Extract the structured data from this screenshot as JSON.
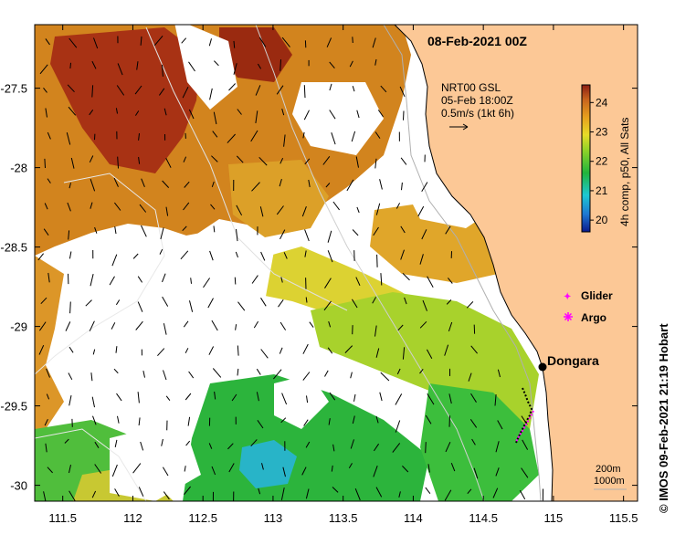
{
  "map": {
    "date_label": "08-Feb-2021 00Z",
    "current_info": {
      "line1": "NRT00 GSL",
      "line2": "05-Feb 18:00Z",
      "line3": "0.5m/s (1kt 6h)"
    },
    "colorbar": {
      "label": "4h comp, p50, All Sats",
      "ticks": [
        "24",
        "23",
        "22",
        "21",
        "20"
      ],
      "range": [
        19.6,
        24.6
      ],
      "colors": [
        "#0a1a8c",
        "#1e78d2",
        "#1ec8d2",
        "#22b43c",
        "#8cd228",
        "#e6dc28",
        "#e6a01e",
        "#c8641e",
        "#8c1e14"
      ]
    },
    "legend": {
      "glider": "Glider",
      "argo": "Argo"
    },
    "place": {
      "name": "Dongara"
    },
    "scale": {
      "depth1": "200m",
      "depth2": "1000m"
    },
    "credit": "© IMOS 09-Feb-2021 21:19 Hobart",
    "x_ticks": [
      "111.5",
      "112",
      "112.5",
      "113",
      "113.5",
      "114",
      "114.5",
      "115",
      "115.5"
    ],
    "y_ticks": [
      "-27.5",
      "-28",
      "-28.5",
      "-29",
      "-29.5",
      "-30"
    ],
    "extent": {
      "lon": [
        111.3,
        115.6
      ],
      "lat": [
        -30.1,
        -27.1
      ]
    },
    "land_color": "#fcc896"
  }
}
